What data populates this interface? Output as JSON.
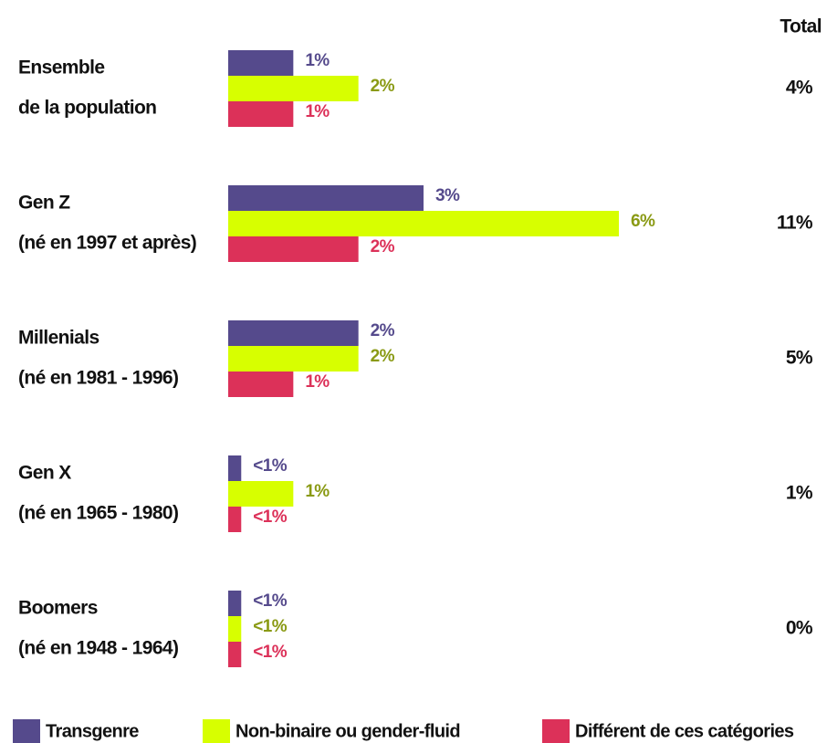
{
  "chart_data": {
    "type": "bar",
    "orientation": "horizontal",
    "categories": [
      [
        "Ensemble",
        "de la population"
      ],
      [
        "Gen Z",
        "(né en 1997 et après)"
      ],
      [
        "Millenials",
        "(né en 1981 - 1996)"
      ],
      [
        "Gen X",
        "(né en 1965 - 1980)"
      ],
      [
        "Boomers",
        "(né en 1948 - 1964)"
      ]
    ],
    "series": [
      {
        "name": "Transgenre",
        "color": "#554a8c",
        "label_color": "#554a8c",
        "values": [
          1,
          3,
          2,
          0.2,
          0.2
        ],
        "value_labels": [
          "1%",
          "3%",
          "2%",
          "<1%",
          "<1%"
        ]
      },
      {
        "name": "Non-binaire ou gender-fluid",
        "color": "#d7ff00",
        "label_color": "#8a9a14",
        "values": [
          2,
          6,
          2,
          1,
          0.2
        ],
        "value_labels": [
          "2%",
          "6%",
          "2%",
          "1%",
          "<1%"
        ]
      },
      {
        "name": "Différent de ces catégories",
        "color": "#dc3159",
        "label_color": "#dc3159",
        "values": [
          1,
          2,
          1,
          0.2,
          0.2
        ],
        "value_labels": [
          "1%",
          "2%",
          "1%",
          "<1%",
          "<1%"
        ]
      }
    ],
    "total_title": "Total",
    "totals": [
      "4%",
      "11%",
      "5%",
      "1%",
      "0%"
    ],
    "xlim": [
      0,
      6
    ]
  }
}
